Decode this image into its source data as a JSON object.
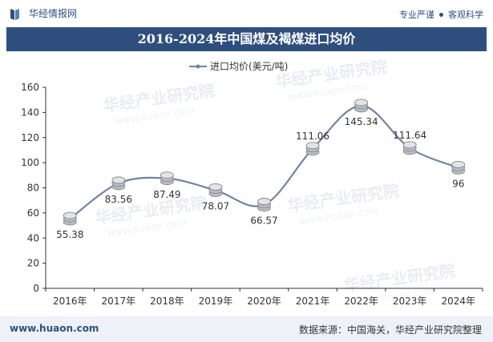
{
  "header": {
    "brand": "华经情报网",
    "tagline_left": "专业严谨",
    "tagline_right": "客观科学"
  },
  "title": "2016-2024年中国煤及褐煤进口均价",
  "legend_label": "进口均价(美元/吨)",
  "watermark": "华经产业研究院",
  "watermark_url": "www.huaon.com",
  "footer": {
    "website": "www.huaon.com",
    "source": "数据来源：中国海关，华经产业研究院整理"
  },
  "colors": {
    "line": "#6f84a8",
    "title_bg": "#2e4e7e",
    "brand": "#2f4f7f"
  },
  "chart_data": {
    "type": "line",
    "title": "2016-2024年中国煤及褐煤进口均价",
    "categories": [
      "2016年",
      "2017年",
      "2018年",
      "2019年",
      "2020年",
      "2021年",
      "2022年",
      "2023年",
      "2024年"
    ],
    "series": [
      {
        "name": "进口均价(美元/吨)",
        "values": [
          55.38,
          83.56,
          87.49,
          78.07,
          66.57,
          111.06,
          145.34,
          111.64,
          96
        ]
      }
    ],
    "value_labels": [
      "55.38",
      "83.56",
      "87.49",
      "78.07",
      "66.57",
      "111.06",
      "145.34",
      "111.64",
      "96"
    ],
    "label_position": [
      "below",
      "below",
      "below",
      "below",
      "below",
      "above",
      "below",
      "above",
      "below"
    ],
    "ylim": [
      0,
      160
    ],
    "yticks": [
      0,
      20,
      40,
      60,
      80,
      100,
      120,
      140,
      160
    ],
    "grid": false,
    "legend": "top-center",
    "xlabel": "",
    "ylabel": ""
  }
}
